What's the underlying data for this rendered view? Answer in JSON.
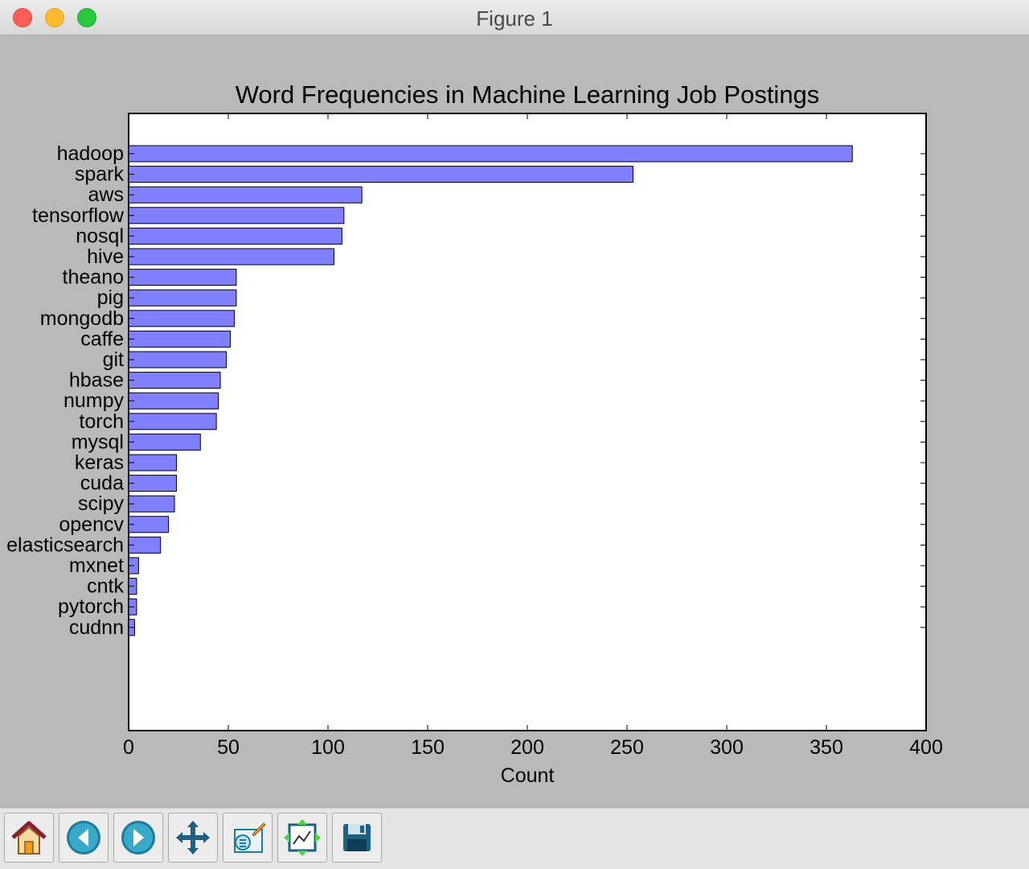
{
  "window": {
    "title": "Figure 1"
  },
  "chart_data": {
    "type": "bar",
    "orientation": "horizontal",
    "title": "Word Frequencies in Machine Learning Job Postings",
    "xlabel": "Count",
    "ylabel": "",
    "xlim": [
      0,
      400
    ],
    "xticks": [
      0,
      50,
      100,
      150,
      200,
      250,
      300,
      350,
      400
    ],
    "categories": [
      "hadoop",
      "spark",
      "aws",
      "tensorflow",
      "nosql",
      "hive",
      "theano",
      "pig",
      "mongodb",
      "caffe",
      "git",
      "hbase",
      "numpy",
      "torch",
      "mysql",
      "keras",
      "cuda",
      "scipy",
      "opencv",
      "elasticsearch",
      "mxnet",
      "cntk",
      "pytorch",
      "cudnn"
    ],
    "values": [
      363,
      253,
      117,
      108,
      107,
      103,
      54,
      54,
      53,
      51,
      49,
      46,
      45,
      44,
      36,
      24,
      24,
      23,
      20,
      16,
      5,
      4,
      4,
      3
    ],
    "bar_color": "#8080ff",
    "grid": false
  },
  "toolbar": {
    "buttons": [
      {
        "name": "home-button",
        "icon": "home-icon"
      },
      {
        "name": "back-button",
        "icon": "back-arrow-icon"
      },
      {
        "name": "forward-button",
        "icon": "forward-arrow-icon"
      },
      {
        "name": "pan-button",
        "icon": "move-icon"
      },
      {
        "name": "zoom-button",
        "icon": "zoom-rect-icon"
      },
      {
        "name": "subplots-button",
        "icon": "subplots-icon"
      },
      {
        "name": "save-button",
        "icon": "save-icon"
      }
    ]
  }
}
